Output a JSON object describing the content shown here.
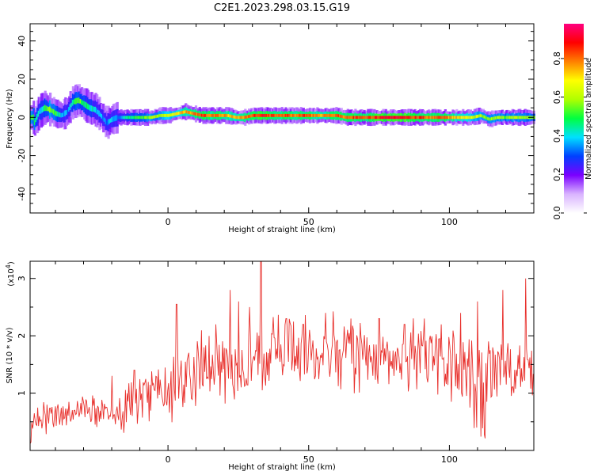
{
  "title": "C2E1.2023.298.03.15.G19",
  "chart_data": [
    {
      "type": "heatmap",
      "xlabel": "Height of straight line (km)",
      "ylabel": "Frequency (Hz)",
      "xlim": [
        -49,
        130
      ],
      "ylim": [
        -50,
        49
      ],
      "xticks": [
        0,
        50,
        100
      ],
      "yticks": [
        -40,
        -20,
        0,
        20,
        40
      ],
      "colorbar": {
        "label": "Normalized spectral amplitude",
        "range": [
          0,
          0.98
        ],
        "ticks": [
          "0.0",
          "0.2",
          "0.4",
          "0.6",
          "0.8"
        ],
        "colormap": [
          "#ffffff",
          "#d9b3ff",
          "#7a00ff",
          "#0040ff",
          "#00e0ff",
          "#00ff40",
          "#b0ff00",
          "#ffff00",
          "#ff8000",
          "#ff0000",
          "#ff0080"
        ]
      },
      "ridge": [
        [
          -48,
          -4,
          0.55
        ],
        [
          -46,
          3,
          0.4
        ],
        [
          -44,
          5,
          0.5
        ],
        [
          -42,
          4,
          0.6
        ],
        [
          -40,
          2,
          0.5
        ],
        [
          -38,
          1,
          0.4
        ],
        [
          -36,
          3,
          0.35
        ],
        [
          -34,
          8,
          0.45
        ],
        [
          -32,
          9,
          0.55
        ],
        [
          -30,
          7,
          0.5
        ],
        [
          -28,
          5,
          0.45
        ],
        [
          -26,
          4,
          0.4
        ],
        [
          -24,
          1,
          0.35
        ],
        [
          -22,
          -3,
          0.35
        ],
        [
          -20,
          -1,
          0.4
        ],
        [
          -18,
          0,
          0.35
        ],
        [
          -15,
          0,
          0.45
        ],
        [
          -12,
          0,
          0.5
        ],
        [
          -9,
          0,
          0.55
        ],
        [
          -6,
          0,
          0.6
        ],
        [
          -3,
          1,
          0.6
        ],
        [
          0,
          1,
          0.65
        ],
        [
          3,
          2,
          0.7
        ],
        [
          6,
          3,
          0.75
        ],
        [
          9,
          2,
          0.8
        ],
        [
          12,
          1,
          0.85
        ],
        [
          15,
          1,
          0.8
        ],
        [
          18,
          1,
          0.8
        ],
        [
          21,
          1,
          0.75
        ],
        [
          24,
          0,
          0.75
        ],
        [
          27,
          0,
          0.8
        ],
        [
          30,
          1,
          0.85
        ],
        [
          33,
          1,
          0.9
        ],
        [
          36,
          1,
          0.85
        ],
        [
          39,
          1,
          0.8
        ],
        [
          42,
          1,
          0.85
        ],
        [
          45,
          1,
          0.8
        ],
        [
          48,
          1,
          0.85
        ],
        [
          51,
          1,
          0.8
        ],
        [
          54,
          1,
          0.75
        ],
        [
          57,
          1,
          0.8
        ],
        [
          60,
          1,
          0.85
        ],
        [
          63,
          0,
          0.8
        ],
        [
          66,
          0,
          0.85
        ],
        [
          69,
          0,
          0.8
        ],
        [
          72,
          0,
          0.85
        ],
        [
          75,
          0,
          0.9
        ],
        [
          78,
          0,
          0.9
        ],
        [
          81,
          0,
          0.9
        ],
        [
          84,
          0,
          0.9
        ],
        [
          87,
          0,
          0.85
        ],
        [
          90,
          0,
          0.85
        ],
        [
          93,
          0,
          0.8
        ],
        [
          96,
          0,
          0.85
        ],
        [
          99,
          0,
          0.8
        ],
        [
          102,
          0,
          0.75
        ],
        [
          105,
          0,
          0.7
        ],
        [
          108,
          0,
          0.65
        ],
        [
          111,
          1,
          0.6
        ],
        [
          114,
          -1,
          0.55
        ],
        [
          117,
          0,
          0.6
        ],
        [
          120,
          0,
          0.55
        ],
        [
          123,
          0,
          0.6
        ],
        [
          126,
          0,
          0.6
        ],
        [
          129,
          0,
          0.55
        ]
      ]
    },
    {
      "type": "line",
      "xlabel": "Height of straight line (km)",
      "ylabel": "SNR (10 * v/v)",
      "y_multiplier": "(x10^4)",
      "xlim": [
        -49,
        130
      ],
      "ylim": [
        0,
        3.3
      ],
      "xticks": [
        0,
        50,
        100
      ],
      "yticks": [
        1,
        2,
        3
      ],
      "color": "#e8302c",
      "envelope": [
        [
          -49,
          0.3
        ],
        [
          -45,
          0.55
        ],
        [
          -40,
          0.65
        ],
        [
          -35,
          0.7
        ],
        [
          -30,
          0.75
        ],
        [
          -25,
          0.75
        ],
        [
          -20,
          0.7
        ],
        [
          -15,
          0.75
        ],
        [
          -10,
          0.9
        ],
        [
          -5,
          1.05
        ],
        [
          0,
          1.1
        ],
        [
          5,
          1.25
        ],
        [
          10,
          1.35
        ],
        [
          15,
          1.45
        ],
        [
          20,
          1.5
        ],
        [
          25,
          1.55
        ],
        [
          30,
          1.6
        ],
        [
          35,
          1.65
        ],
        [
          40,
          1.7
        ],
        [
          45,
          1.72
        ],
        [
          50,
          1.75
        ],
        [
          55,
          1.75
        ],
        [
          60,
          1.75
        ],
        [
          65,
          1.72
        ],
        [
          70,
          1.7
        ],
        [
          75,
          1.68
        ],
        [
          80,
          1.65
        ],
        [
          85,
          1.6
        ],
        [
          90,
          1.55
        ],
        [
          95,
          1.55
        ],
        [
          100,
          1.5
        ],
        [
          105,
          1.45
        ],
        [
          110,
          1.3
        ],
        [
          115,
          1.35
        ],
        [
          120,
          1.4
        ],
        [
          125,
          1.35
        ],
        [
          130,
          1.4
        ]
      ],
      "spikes": [
        [
          -20,
          1.3
        ],
        [
          -12,
          1.4
        ],
        [
          3,
          2.55
        ],
        [
          17,
          2.2
        ],
        [
          22,
          2.8
        ],
        [
          25,
          2.6
        ],
        [
          29,
          2.5
        ],
        [
          33,
          3.3
        ],
        [
          42,
          2.3
        ],
        [
          48,
          2.2
        ],
        [
          56,
          2.4
        ],
        [
          65,
          2.3
        ],
        [
          75,
          2.3
        ],
        [
          84,
          2.2
        ],
        [
          91,
          2.3
        ],
        [
          97,
          2.2
        ],
        [
          104,
          2.4
        ],
        [
          110,
          2.6
        ],
        [
          119,
          2.8
        ],
        [
          127,
          3.0
        ]
      ]
    }
  ]
}
